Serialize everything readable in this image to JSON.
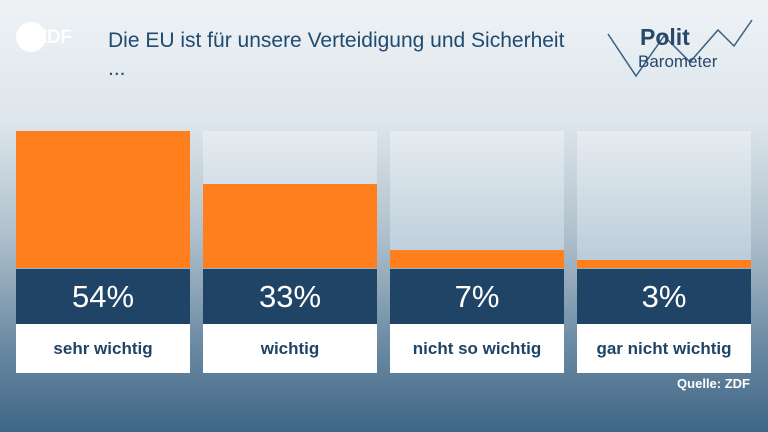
{
  "brand": {
    "logo_text": "ZDF",
    "polit_line1": "Polit",
    "polit_line2": "Barometer"
  },
  "chart_data": {
    "type": "bar",
    "title": "Die EU ist für unsere Verteidigung und Sicherheit ...",
    "categories": [
      "sehr wichtig",
      "wichtig",
      "nicht so wichtig",
      "gar nicht wichtig"
    ],
    "values": [
      54,
      33,
      7,
      3
    ],
    "value_labels": [
      "54%",
      "33%",
      "7%",
      "3%"
    ],
    "ylim": [
      0,
      54
    ],
    "grid": false,
    "colors": {
      "bar": "#ff7f1e",
      "track": "#c9d7e1",
      "value_box": "#1f4466"
    }
  },
  "source": "Quelle: ZDF"
}
